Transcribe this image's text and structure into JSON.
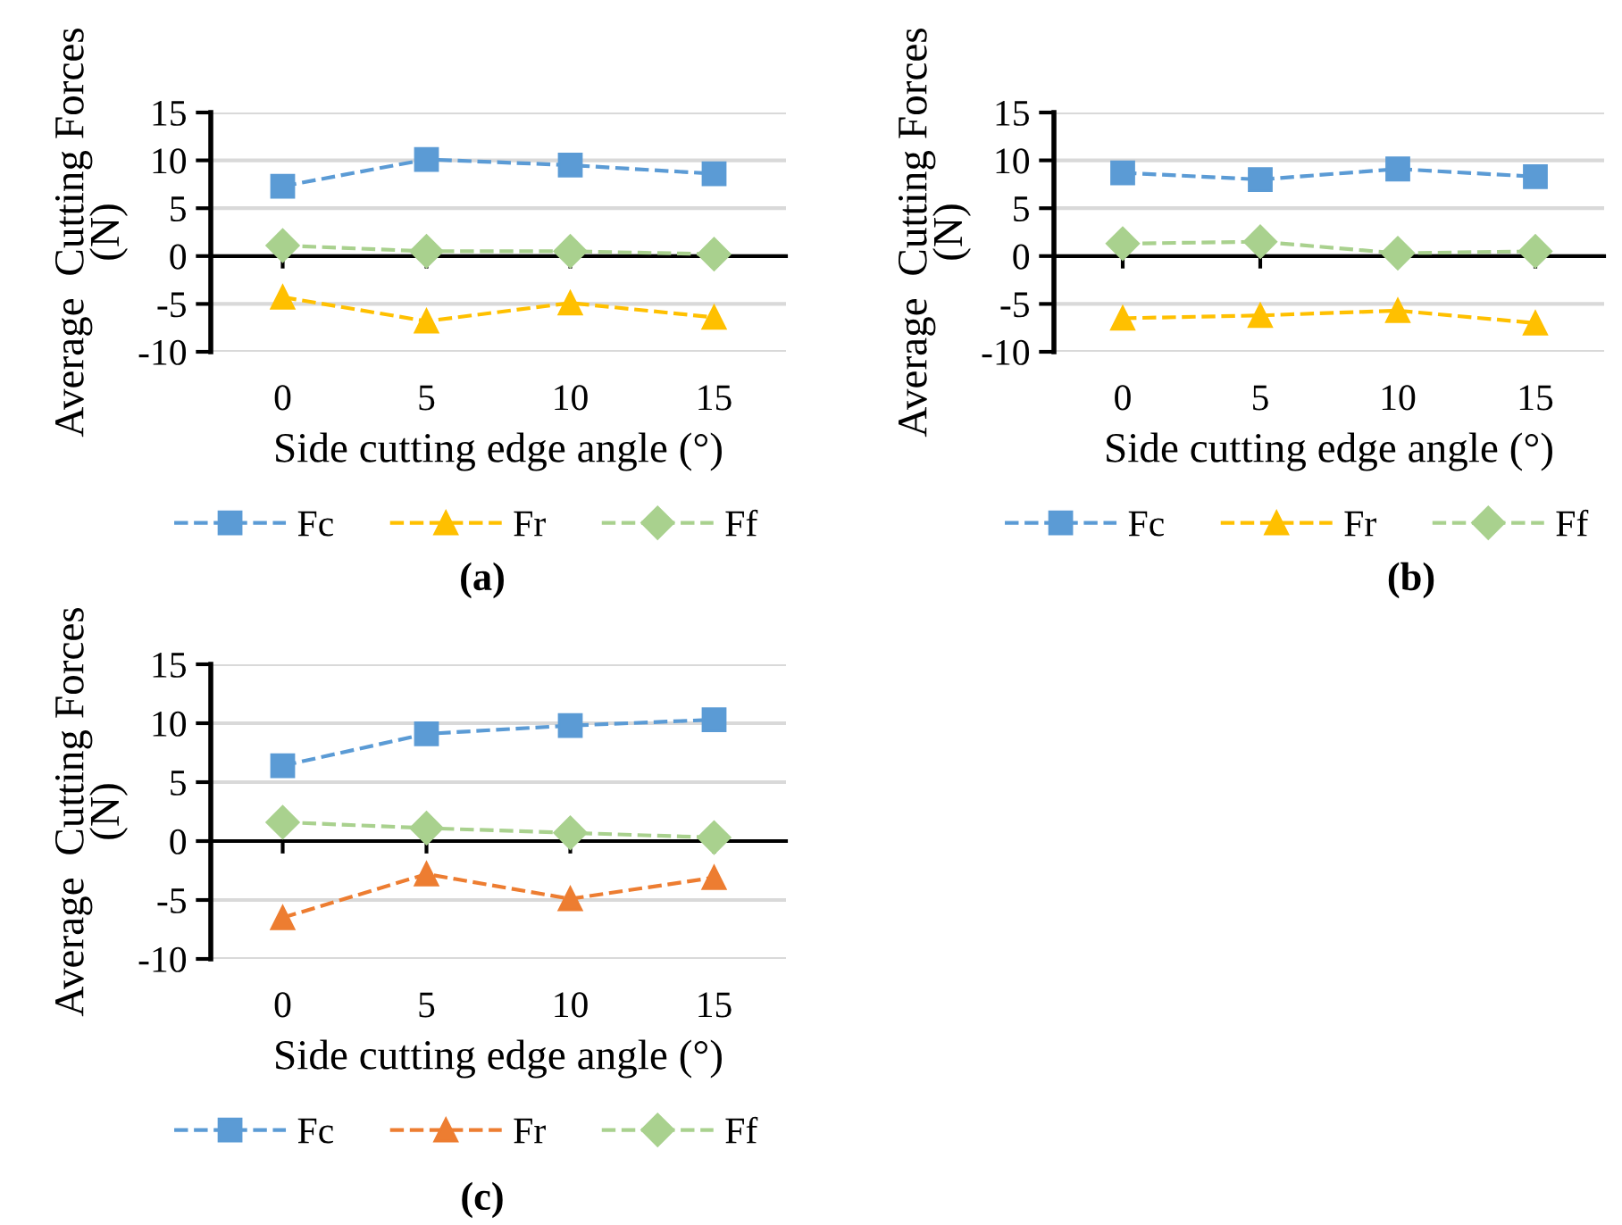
{
  "chart_data": [
    {
      "type": "line",
      "xlabel": "Side cutting edge angle (°)",
      "ylabel": "Average  Cutting Forces\n(N)",
      "categories": [
        "0",
        "5",
        "10",
        "15"
      ],
      "ylim": [
        -10,
        15
      ],
      "yticks": [
        -10,
        -5,
        0,
        5,
        10,
        15
      ],
      "grid": "y",
      "legend": "bottom",
      "line_style": "dashed",
      "annotations": [
        "(a)"
      ],
      "series": [
        {
          "name": "Fc",
          "color": "#5b9bd5",
          "marker": "square",
          "values": [
            7.3,
            10.1,
            9.5,
            8.6
          ]
        },
        {
          "name": "Fr",
          "color": "#ffc000",
          "marker": "triangle",
          "values": [
            -4.3,
            -6.8,
            -4.9,
            -6.4
          ]
        },
        {
          "name": "Ff",
          "color": "#a9d18e",
          "marker": "diamond",
          "values": [
            1.1,
            0.5,
            0.5,
            0.2
          ]
        }
      ]
    },
    {
      "type": "line",
      "xlabel": "Side cutting edge angle (°)",
      "ylabel": "Average  Cutting Forces\n(N)",
      "categories": [
        "0",
        "5",
        "10",
        "15"
      ],
      "ylim": [
        -10,
        15
      ],
      "yticks": [
        -10,
        -5,
        0,
        5,
        10,
        15
      ],
      "grid": "y",
      "legend": "bottom",
      "line_style": "dashed",
      "annotations": [
        "(b)"
      ],
      "series": [
        {
          "name": "Fc",
          "color": "#5b9bd5",
          "marker": "square",
          "values": [
            8.7,
            8.0,
            9.1,
            8.3
          ]
        },
        {
          "name": "Fr",
          "color": "#ffc000",
          "marker": "triangle",
          "values": [
            -6.5,
            -6.2,
            -5.7,
            -7.0
          ]
        },
        {
          "name": "Ff",
          "color": "#a9d18e",
          "marker": "diamond",
          "values": [
            1.3,
            1.5,
            0.3,
            0.5
          ]
        }
      ]
    },
    {
      "type": "line",
      "xlabel": "Side cutting edge angle (°)",
      "ylabel": "Average  Cutting Forces\n(N)",
      "categories": [
        "0",
        "5",
        "10",
        "15"
      ],
      "ylim": [
        -10,
        15
      ],
      "yticks": [
        -10,
        -5,
        0,
        5,
        10,
        15
      ],
      "grid": "y",
      "legend": "bottom",
      "line_style": "dashed",
      "annotations": [
        "(c)"
      ],
      "series": [
        {
          "name": "Fc",
          "color": "#5b9bd5",
          "marker": "square",
          "values": [
            6.4,
            9.1,
            9.8,
            10.3
          ]
        },
        {
          "name": "Fr",
          "color": "#ed7d31",
          "marker": "triangle",
          "values": [
            -6.5,
            -2.8,
            -4.9,
            -3.1
          ]
        },
        {
          "name": "Ff",
          "color": "#a9d18e",
          "marker": "diamond",
          "values": [
            1.6,
            1.1,
            0.7,
            0.3
          ]
        }
      ]
    }
  ]
}
